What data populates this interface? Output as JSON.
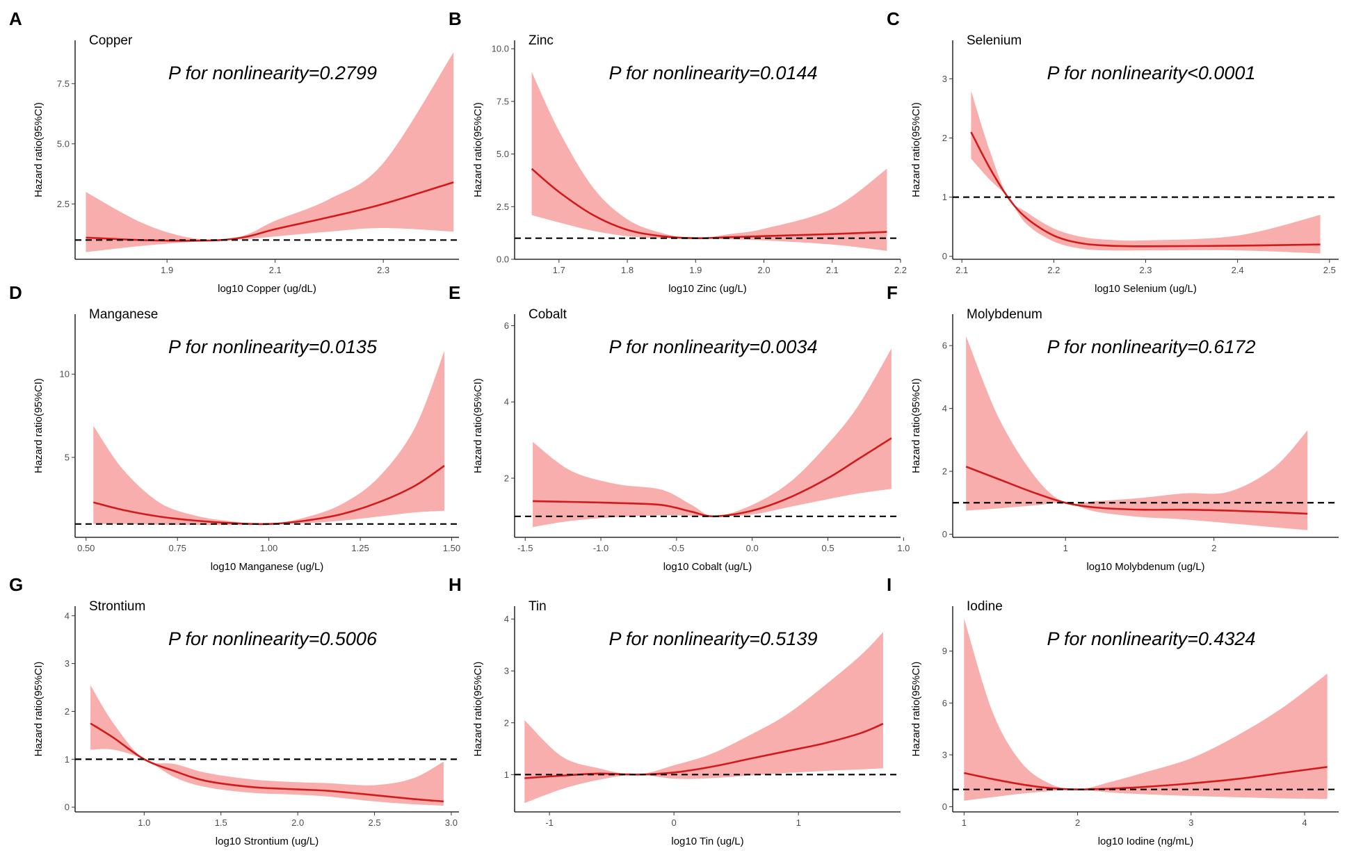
{
  "chart_data": [
    {
      "type": "line",
      "panel_label": "A",
      "title": "Copper",
      "annotation": "P for nonlinearity=0.2799",
      "xlabel": "log10 Copper (ug/dL)",
      "ylabel": "Hazard ratio(95%CI)",
      "xlim": [
        1.73,
        2.44
      ],
      "ylim": [
        0.2,
        9.3
      ],
      "xticks": [
        1.9,
        2.1,
        2.3
      ],
      "xtick_labels": [
        "1.9",
        "2.1",
        "2.3"
      ],
      "yticks": [
        2.5,
        5.0,
        7.5
      ],
      "ytick_labels": [
        "2.5",
        "5.0",
        "7.5"
      ],
      "reference_line": 1,
      "series": [
        {
          "name": "hr",
          "x": [
            1.75,
            1.85,
            1.93,
            2.0,
            2.05,
            2.1,
            2.2,
            2.3,
            2.43
          ],
          "y": [
            1.1,
            1.0,
            0.97,
            1.0,
            1.15,
            1.45,
            1.95,
            2.5,
            3.4
          ]
        },
        {
          "name": "ci_lower",
          "x": [
            1.75,
            1.85,
            1.93,
            2.0,
            2.05,
            2.1,
            2.2,
            2.3,
            2.43
          ],
          "y": [
            0.5,
            0.75,
            0.9,
            1.0,
            1.05,
            1.15,
            1.35,
            1.5,
            1.35
          ]
        },
        {
          "name": "ci_upper",
          "x": [
            1.75,
            1.85,
            1.93,
            2.0,
            2.05,
            2.1,
            2.2,
            2.3,
            2.43
          ],
          "y": [
            3.0,
            1.75,
            1.15,
            1.0,
            1.25,
            1.8,
            2.7,
            4.2,
            8.8
          ]
        }
      ]
    },
    {
      "type": "line",
      "panel_label": "B",
      "title": "Zinc",
      "annotation": "P for nonlinearity=0.0144",
      "xlabel": "log10 Zinc (ug/L)",
      "ylabel": "Hazard ratio(95%CI)",
      "xlim": [
        1.635,
        2.2
      ],
      "ylim": [
        0,
        10.4
      ],
      "xticks": [
        1.7,
        1.8,
        1.9,
        2.0,
        2.1,
        2.2
      ],
      "xtick_labels": [
        "1.7",
        "1.8",
        "1.9",
        "2.0",
        "2.1",
        "2.2"
      ],
      "yticks": [
        0,
        2.5,
        5,
        7.5,
        10
      ],
      "ytick_labels": [
        "0.0",
        "2.5",
        "5.0",
        "7.5",
        "10.0"
      ],
      "reference_line": 1,
      "series": [
        {
          "name": "hr",
          "x": [
            1.66,
            1.7,
            1.75,
            1.8,
            1.85,
            1.9,
            1.95,
            2.0,
            2.1,
            2.18
          ],
          "y": [
            4.3,
            3.2,
            2.1,
            1.4,
            1.1,
            1.0,
            1.05,
            1.1,
            1.2,
            1.3
          ]
        },
        {
          "name": "ci_lower",
          "x": [
            1.66,
            1.7,
            1.75,
            1.8,
            1.85,
            1.9,
            1.95,
            2.0,
            2.1,
            2.18
          ],
          "y": [
            2.1,
            1.75,
            1.35,
            1.1,
            1.0,
            1.0,
            0.95,
            0.9,
            0.7,
            0.4
          ]
        },
        {
          "name": "ci_upper",
          "x": [
            1.66,
            1.7,
            1.75,
            1.8,
            1.85,
            1.9,
            1.95,
            2.0,
            2.1,
            2.18
          ],
          "y": [
            8.9,
            6.1,
            3.4,
            1.9,
            1.25,
            1.0,
            1.2,
            1.45,
            2.4,
            4.3
          ]
        }
      ]
    },
    {
      "type": "line",
      "panel_label": "C",
      "title": "Selenium",
      "annotation": "P for nonlinearity<0.0001",
      "xlabel": "log10 Selenium (ug/L)",
      "ylabel": "Hazard ratio(95%CI)",
      "xlim": [
        2.09,
        2.51
      ],
      "ylim": [
        -0.05,
        3.65
      ],
      "xticks": [
        2.1,
        2.2,
        2.3,
        2.4,
        2.5
      ],
      "xtick_labels": [
        "2.1",
        "2.2",
        "2.3",
        "2.4",
        "2.5"
      ],
      "yticks": [
        0,
        1,
        2,
        3
      ],
      "ytick_labels": [
        "0",
        "1",
        "2",
        "3"
      ],
      "reference_line": 1,
      "series": [
        {
          "name": "hr",
          "x": [
            2.11,
            2.13,
            2.15,
            2.17,
            2.2,
            2.23,
            2.26,
            2.3,
            2.4,
            2.49
          ],
          "y": [
            2.1,
            1.5,
            1.0,
            0.65,
            0.35,
            0.22,
            0.18,
            0.17,
            0.18,
            0.2
          ]
        },
        {
          "name": "ci_lower",
          "x": [
            2.11,
            2.13,
            2.15,
            2.17,
            2.2,
            2.23,
            2.26,
            2.3,
            2.4,
            2.49
          ],
          "y": [
            1.65,
            1.3,
            1.0,
            0.55,
            0.25,
            0.13,
            0.1,
            0.1,
            0.1,
            0.05
          ]
        },
        {
          "name": "ci_upper",
          "x": [
            2.11,
            2.13,
            2.15,
            2.17,
            2.2,
            2.23,
            2.26,
            2.3,
            2.4,
            2.49
          ],
          "y": [
            2.8,
            1.8,
            1.0,
            0.75,
            0.47,
            0.33,
            0.28,
            0.27,
            0.35,
            0.7
          ]
        }
      ]
    },
    {
      "type": "line",
      "panel_label": "D",
      "title": "Manganese",
      "annotation": "P for nonlinearity=0.0135",
      "xlabel": "log10 Manganese (ug/L)",
      "ylabel": "Hazard ratio(95%CI)",
      "xlim": [
        0.47,
        1.52
      ],
      "ylim": [
        0.2,
        13.6
      ],
      "xticks": [
        0.5,
        0.75,
        1.0,
        1.25,
        1.5
      ],
      "xtick_labels": [
        "0.50",
        "0.75",
        "1.00",
        "1.25",
        "1.50"
      ],
      "yticks": [
        5,
        10
      ],
      "ytick_labels": [
        "5",
        "10"
      ],
      "reference_line": 1,
      "series": [
        {
          "name": "hr",
          "x": [
            0.52,
            0.6,
            0.7,
            0.8,
            0.9,
            1.0,
            1.1,
            1.2,
            1.3,
            1.4,
            1.48
          ],
          "y": [
            2.3,
            1.85,
            1.45,
            1.2,
            1.05,
            1.0,
            1.2,
            1.6,
            2.3,
            3.3,
            4.5
          ]
        },
        {
          "name": "ci_lower",
          "x": [
            0.52,
            0.6,
            0.7,
            0.8,
            0.9,
            1.0,
            1.1,
            1.2,
            1.3,
            1.4,
            1.48
          ],
          "y": [
            1.0,
            1.0,
            0.97,
            0.95,
            0.95,
            1.0,
            1.05,
            1.2,
            1.45,
            1.7,
            1.8
          ]
        },
        {
          "name": "ci_upper",
          "x": [
            0.52,
            0.6,
            0.7,
            0.8,
            0.9,
            1.0,
            1.1,
            1.2,
            1.3,
            1.4,
            1.48
          ],
          "y": [
            6.9,
            4.3,
            2.3,
            1.5,
            1.15,
            1.0,
            1.4,
            2.2,
            3.8,
            6.8,
            11.4
          ]
        }
      ]
    },
    {
      "type": "line",
      "panel_label": "E",
      "title": "Cobalt",
      "annotation": "P for nonlinearity=0.0034",
      "xlabel": "log10 Cobalt (ug/L)",
      "ylabel": "Hazard ratio(95%CI)",
      "xlim": [
        -1.57,
        0.98
      ],
      "ylim": [
        0.45,
        6.3
      ],
      "xticks": [
        -1.5,
        -1.0,
        -0.5,
        0.0,
        0.5,
        1.0
      ],
      "xtick_labels": [
        "-1.5",
        "-1.0",
        "-0.5",
        "0.0",
        "0.5",
        "1.0"
      ],
      "yticks": [
        2,
        4,
        6
      ],
      "ytick_labels": [
        "2",
        "4",
        "6"
      ],
      "reference_line": 1,
      "series": [
        {
          "name": "hr",
          "x": [
            -1.45,
            -1.2,
            -0.9,
            -0.6,
            -0.4,
            -0.25,
            0.0,
            0.25,
            0.5,
            0.7,
            0.92
          ],
          "y": [
            1.4,
            1.38,
            1.35,
            1.3,
            1.12,
            1.0,
            1.15,
            1.5,
            2.0,
            2.5,
            3.05
          ]
        },
        {
          "name": "ci_lower",
          "x": [
            -1.45,
            -1.2,
            -0.9,
            -0.6,
            -0.4,
            -0.25,
            0.0,
            0.25,
            0.5,
            0.7,
            0.92
          ],
          "y": [
            0.72,
            0.88,
            0.98,
            1.03,
            1.02,
            1.0,
            1.05,
            1.25,
            1.45,
            1.6,
            1.72
          ]
        },
        {
          "name": "ci_upper",
          "x": [
            -1.45,
            -1.2,
            -0.9,
            -0.6,
            -0.4,
            -0.25,
            0.0,
            0.25,
            0.5,
            0.7,
            0.92
          ],
          "y": [
            2.95,
            2.2,
            1.85,
            1.7,
            1.3,
            1.0,
            1.3,
            1.9,
            2.9,
            3.9,
            5.4
          ]
        }
      ]
    },
    {
      "type": "line",
      "panel_label": "F",
      "title": "Molybdenum",
      "annotation": "P for nonlinearity=0.6172",
      "xlabel": "log10 Molybdenum (ug/L)",
      "ylabel": "Hazard ratio(95%CI)",
      "xlim": [
        0.24,
        2.84
      ],
      "ylim": [
        -0.1,
        7.0
      ],
      "xticks": [
        1,
        2
      ],
      "xtick_labels": [
        "1",
        "2"
      ],
      "yticks": [
        0,
        2,
        4,
        6
      ],
      "ytick_labels": [
        "0",
        "2",
        "4",
        "6"
      ],
      "reference_line": 1,
      "series": [
        {
          "name": "hr",
          "x": [
            0.33,
            0.55,
            0.8,
            1.0,
            1.2,
            1.5,
            1.8,
            2.1,
            2.4,
            2.63
          ],
          "y": [
            2.15,
            1.75,
            1.3,
            1.0,
            0.85,
            0.78,
            0.78,
            0.75,
            0.7,
            0.65
          ]
        },
        {
          "name": "ci_lower",
          "x": [
            0.33,
            0.55,
            0.8,
            1.0,
            1.2,
            1.5,
            1.8,
            2.1,
            2.4,
            2.63
          ],
          "y": [
            0.75,
            0.82,
            0.92,
            1.0,
            0.72,
            0.55,
            0.47,
            0.35,
            0.22,
            0.13
          ]
        },
        {
          "name": "ci_upper",
          "x": [
            0.33,
            0.55,
            0.8,
            1.0,
            1.2,
            1.5,
            1.8,
            2.1,
            2.4,
            2.63
          ],
          "y": [
            6.3,
            3.7,
            1.8,
            1.0,
            1.05,
            1.15,
            1.3,
            1.35,
            2.1,
            3.3
          ]
        }
      ]
    },
    {
      "type": "line",
      "panel_label": "G",
      "title": "Strontium",
      "annotation": "P for nonlinearity=0.5006",
      "xlabel": "log10 Strontium (ug/L)",
      "ylabel": "Hazard ratio(95%CI)",
      "xlim": [
        0.55,
        3.05
      ],
      "ylim": [
        -0.1,
        4.2
      ],
      "xticks": [
        1.0,
        1.5,
        2.0,
        2.5,
        3.0
      ],
      "xtick_labels": [
        "1.0",
        "1.5",
        "2.0",
        "2.5",
        "3.0"
      ],
      "yticks": [
        0,
        1,
        2,
        3,
        4
      ],
      "ytick_labels": [
        "0",
        "1",
        "2",
        "3",
        "4"
      ],
      "reference_line": 1,
      "series": [
        {
          "name": "hr",
          "x": [
            0.65,
            0.8,
            1.0,
            1.2,
            1.4,
            1.7,
            2.0,
            2.2,
            2.5,
            2.75,
            2.95
          ],
          "y": [
            1.75,
            1.45,
            1.0,
            0.75,
            0.55,
            0.42,
            0.37,
            0.34,
            0.25,
            0.17,
            0.12
          ]
        },
        {
          "name": "ci_lower",
          "x": [
            0.65,
            0.8,
            1.0,
            1.2,
            1.4,
            1.7,
            2.0,
            2.2,
            2.5,
            2.75,
            2.95
          ],
          "y": [
            1.2,
            1.2,
            1.0,
            0.62,
            0.42,
            0.3,
            0.26,
            0.22,
            0.12,
            0.06,
            0.03
          ]
        },
        {
          "name": "ci_upper",
          "x": [
            0.65,
            0.8,
            1.0,
            1.2,
            1.4,
            1.7,
            2.0,
            2.2,
            2.5,
            2.75,
            2.95
          ],
          "y": [
            2.55,
            1.75,
            1.0,
            0.9,
            0.72,
            0.58,
            0.52,
            0.5,
            0.46,
            0.6,
            0.95
          ]
        }
      ]
    },
    {
      "type": "line",
      "panel_label": "H",
      "title": "Tin",
      "annotation": "P for nonlinearity=0.5139",
      "xlabel": "log10 Tin (ug/L)",
      "ylabel": "Hazard ratio(95%CI)",
      "xlim": [
        -1.28,
        1.82
      ],
      "ylim": [
        0.28,
        4.25
      ],
      "xticks": [
        -1,
        0,
        1
      ],
      "xtick_labels": [
        "-1",
        "0",
        "1"
      ],
      "yticks": [
        1,
        2,
        3,
        4
      ],
      "ytick_labels": [
        "1",
        "2",
        "3",
        "4"
      ],
      "reference_line": 1,
      "series": [
        {
          "name": "hr",
          "x": [
            -1.2,
            -0.9,
            -0.6,
            -0.3,
            0.0,
            0.3,
            0.6,
            0.9,
            1.2,
            1.5,
            1.68
          ],
          "y": [
            0.93,
            0.98,
            1.02,
            1.0,
            1.04,
            1.15,
            1.3,
            1.45,
            1.6,
            1.8,
            1.98
          ]
        },
        {
          "name": "ci_lower",
          "x": [
            -1.2,
            -0.9,
            -0.6,
            -0.3,
            0.0,
            0.3,
            0.6,
            0.9,
            1.2,
            1.5,
            1.68
          ],
          "y": [
            0.45,
            0.72,
            0.9,
            1.0,
            0.92,
            0.93,
            0.98,
            1.03,
            1.07,
            1.1,
            1.12
          ]
        },
        {
          "name": "ci_upper",
          "x": [
            -1.2,
            -0.9,
            -0.6,
            -0.3,
            0.0,
            0.3,
            0.6,
            0.9,
            1.2,
            1.5,
            1.68
          ],
          "y": [
            2.05,
            1.35,
            1.12,
            1.0,
            1.18,
            1.4,
            1.75,
            2.15,
            2.7,
            3.3,
            3.75
          ]
        }
      ]
    },
    {
      "type": "line",
      "panel_label": "I",
      "title": "Iodine",
      "annotation": "P for nonlinearity=0.4324",
      "xlabel": "log10 Iodine (ng/mL)",
      "ylabel": "Hazard ratio(95%CI)",
      "xlim": [
        0.9,
        4.3
      ],
      "ylim": [
        -0.3,
        11.6
      ],
      "xticks": [
        1,
        2,
        3,
        4
      ],
      "xtick_labels": [
        "1",
        "2",
        "3",
        "4"
      ],
      "yticks": [
        0,
        3,
        6,
        9
      ],
      "ytick_labels": [
        "0",
        "3",
        "6",
        "9"
      ],
      "reference_line": 1,
      "series": [
        {
          "name": "hr",
          "x": [
            1.0,
            1.25,
            1.5,
            1.75,
            2.0,
            2.3,
            2.6,
            3.0,
            3.4,
            3.8,
            4.2
          ],
          "y": [
            1.95,
            1.6,
            1.3,
            1.08,
            1.0,
            1.05,
            1.15,
            1.35,
            1.6,
            1.95,
            2.3
          ]
        },
        {
          "name": "ci_lower",
          "x": [
            1.0,
            1.25,
            1.5,
            1.75,
            2.0,
            2.3,
            2.6,
            3.0,
            3.4,
            3.8,
            4.2
          ],
          "y": [
            0.35,
            0.55,
            0.75,
            0.9,
            1.0,
            0.82,
            0.72,
            0.62,
            0.55,
            0.48,
            0.45
          ]
        },
        {
          "name": "ci_upper",
          "x": [
            1.0,
            1.25,
            1.5,
            1.75,
            2.0,
            2.3,
            2.6,
            3.0,
            3.4,
            3.8,
            4.2
          ],
          "y": [
            10.9,
            5.5,
            2.6,
            1.35,
            1.0,
            1.45,
            2.0,
            2.8,
            4.1,
            5.7,
            7.7
          ]
        }
      ]
    }
  ]
}
